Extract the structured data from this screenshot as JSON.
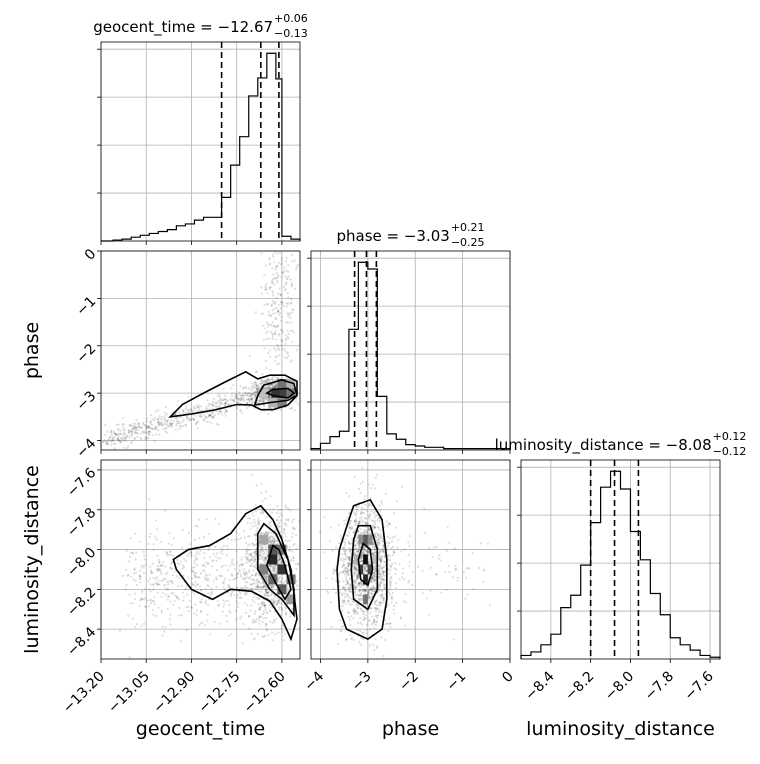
{
  "chart_data": {
    "type": "corner",
    "parameters": [
      "geocent_time",
      "phase",
      "luminosity_distance"
    ],
    "titles": [
      {
        "param": "geocent_time",
        "text": "geocent_time = −12.67",
        "upper": "+0.06",
        "lower": "−0.13",
        "median": -12.67,
        "quantiles": [
          -12.8,
          -12.67,
          -12.61
        ]
      },
      {
        "param": "phase",
        "text": "phase = −3.03",
        "upper": "+0.21",
        "lower": "−0.25",
        "median": -3.03,
        "quantiles": [
          -3.28,
          -3.03,
          -2.82
        ]
      },
      {
        "param": "luminosity_distance",
        "text": "luminosity_distance = −8.08",
        "upper": "+0.12",
        "lower": "−0.12",
        "median": -8.08,
        "quantiles": [
          -8.2,
          -8.08,
          -7.96
        ]
      }
    ],
    "axes": {
      "geocent_time": {
        "range": [
          -13.2,
          -12.54
        ],
        "ticks": [
          -13.2,
          -13.05,
          -12.9,
          -12.75,
          -12.6
        ],
        "ticklabels": [
          "−13.20",
          "−13.05",
          "−12.90",
          "−12.75",
          "−12.60"
        ]
      },
      "phase": {
        "range": [
          -4.2,
          0.0
        ],
        "ticks": [
          -4,
          -3,
          -2,
          -1,
          0
        ],
        "ticklabels": [
          "−4",
          "−3",
          "−2",
          "−1",
          "0"
        ]
      },
      "luminosity_distance": {
        "range": [
          -8.55,
          -7.55
        ],
        "ticks": [
          -8.4,
          -8.2,
          -8.0,
          -7.8,
          -7.6
        ],
        "ticklabels": [
          "−8.4",
          "−8.2",
          "−8.0",
          "−7.8",
          "−7.6"
        ]
      }
    },
    "hist_max_ticklabel": "0",
    "histograms": {
      "geocent_time": {
        "edges": [
          -13.2,
          -13.16,
          -13.13,
          -13.1,
          -13.07,
          -13.04,
          -13.01,
          -12.98,
          -12.95,
          -12.92,
          -12.89,
          -12.86,
          -12.83,
          -12.8,
          -12.77,
          -12.74,
          -12.71,
          -12.68,
          -12.65,
          -12.62,
          -12.6,
          -12.57,
          -12.54
        ],
        "counts": [
          0,
          1,
          2,
          4,
          6,
          8,
          10,
          12,
          16,
          18,
          22,
          25,
          25,
          46,
          80,
          110,
          153,
          172,
          198,
          171,
          5,
          2
        ]
      },
      "phase": {
        "edges": [
          -4.2,
          -4.0,
          -3.8,
          -3.6,
          -3.4,
          -3.2,
          -3.0,
          -2.8,
          -2.6,
          -2.4,
          -2.2,
          -2.0,
          -1.8,
          -1.6,
          -1.4,
          -1.2,
          -1.0,
          -0.8,
          -0.6,
          -0.4,
          -0.2,
          0.0
        ],
        "counts": [
          1,
          5,
          10,
          14,
          90,
          140,
          135,
          40,
          12,
          8,
          4,
          3,
          2,
          2,
          1,
          1,
          1,
          1,
          1,
          1,
          1
        ]
      },
      "luminosity_distance": {
        "edges": [
          -8.55,
          -8.5,
          -8.45,
          -8.4,
          -8.35,
          -8.3,
          -8.25,
          -8.2,
          -8.15,
          -8.1,
          -8.05,
          -8.0,
          -7.95,
          -7.9,
          -7.85,
          -7.8,
          -7.75,
          -7.7,
          -7.65,
          -7.6,
          -7.55
        ],
        "counts": [
          2,
          4,
          8,
          14,
          29,
          36,
          53,
          77,
          97,
          106,
          96,
          72,
          56,
          37,
          25,
          12,
          8,
          5,
          2,
          1
        ]
      }
    },
    "contours": {
      "phase_vs_geocent_time": [
        {
          "level": "outer",
          "x": [
            -12.97,
            -12.9,
            -12.82,
            -12.75,
            -12.7,
            -12.67,
            -12.63,
            -12.58,
            -12.55,
            -12.55,
            -12.59,
            -12.64,
            -12.68,
            -12.72,
            -12.79,
            -12.86,
            -12.93,
            -12.97
          ],
          "y": [
            -3.5,
            -3.44,
            -3.35,
            -3.24,
            -3.25,
            -3.35,
            -3.35,
            -3.25,
            -3.05,
            -2.75,
            -2.62,
            -2.62,
            -2.7,
            -2.55,
            -2.77,
            -3.0,
            -3.24,
            -3.5
          ]
        },
        {
          "level": "middle",
          "x": [
            -12.69,
            -12.64,
            -12.58,
            -12.55,
            -12.56,
            -12.6,
            -12.66,
            -12.68,
            -12.69
          ],
          "y": [
            -3.25,
            -3.2,
            -3.15,
            -3.05,
            -2.8,
            -2.72,
            -2.83,
            -3.05,
            -3.25
          ]
        },
        {
          "level": "inner",
          "x": [
            -12.63,
            -12.58,
            -12.56,
            -12.58,
            -12.63,
            -12.65,
            -12.63
          ],
          "y": [
            -3.05,
            -3.1,
            -3.0,
            -2.9,
            -2.92,
            -3.0,
            -3.05
          ]
        }
      ],
      "luminosity_distance_vs_geocent_time": [
        {
          "level": "outer",
          "x": [
            -12.95,
            -12.9,
            -12.83,
            -12.77,
            -12.7,
            -12.64,
            -12.6,
            -12.57,
            -12.55,
            -12.57,
            -12.6,
            -12.63,
            -12.67,
            -12.72,
            -12.77,
            -12.84,
            -12.91,
            -12.96,
            -12.95
          ],
          "y": [
            -8.1,
            -8.2,
            -8.25,
            -8.2,
            -8.21,
            -8.26,
            -8.35,
            -8.45,
            -8.35,
            -8.1,
            -7.95,
            -7.85,
            -7.78,
            -7.82,
            -7.92,
            -7.98,
            -8.0,
            -8.05,
            -8.1
          ]
        },
        {
          "level": "middle",
          "x": [
            -12.68,
            -12.64,
            -12.6,
            -12.56,
            -12.56,
            -12.58,
            -12.62,
            -12.66,
            -12.68,
            -12.68
          ],
          "y": [
            -8.1,
            -8.2,
            -8.25,
            -8.33,
            -8.2,
            -8.05,
            -7.92,
            -7.87,
            -7.92,
            -8.1
          ]
        },
        {
          "level": "inner",
          "x": [
            -12.65,
            -12.62,
            -12.59,
            -12.57,
            -12.59,
            -12.61,
            -12.63,
            -12.65
          ],
          "y": [
            -8.08,
            -8.17,
            -8.25,
            -8.2,
            -8.08,
            -8.0,
            -7.98,
            -8.08
          ]
        }
      ],
      "luminosity_distance_vs_phase": [
        {
          "level": "outer",
          "x": [
            -3.4,
            -3.6,
            -3.65,
            -3.6,
            -3.45,
            -3.0,
            -2.7,
            -2.6,
            -2.6,
            -2.7,
            -2.95,
            -3.3,
            -3.4
          ],
          "y": [
            -7.85,
            -8.0,
            -8.1,
            -8.3,
            -8.4,
            -8.45,
            -8.4,
            -8.25,
            -8.05,
            -7.85,
            -7.75,
            -7.78,
            -7.85
          ]
        },
        {
          "level": "middle",
          "x": [
            -3.3,
            -3.35,
            -3.3,
            -3.0,
            -2.8,
            -2.8,
            -2.95,
            -3.2,
            -3.3
          ],
          "y": [
            -7.95,
            -8.1,
            -8.25,
            -8.3,
            -8.2,
            -8.0,
            -7.88,
            -7.88,
            -7.95
          ]
        },
        {
          "level": "inner",
          "x": [
            -3.1,
            -3.2,
            -3.15,
            -3.0,
            -2.9,
            -2.95,
            -3.1
          ],
          "y": [
            -7.97,
            -8.05,
            -8.15,
            -8.18,
            -8.1,
            -8.0,
            -7.97
          ]
        }
      ]
    },
    "density_cells": {
      "phase_vs_geocent_time": [
        {
          "x": -12.62,
          "y": -3.0,
          "w": 0.2
        },
        {
          "x": -12.59,
          "y": -3.0,
          "w": 0.25
        },
        {
          "x": -12.6,
          "y": -3.2,
          "w": 0.5
        },
        {
          "x": -12.57,
          "y": -3.0,
          "w": 0.45
        },
        {
          "x": -12.6,
          "y": -2.8,
          "w": 0.45
        },
        {
          "x": -12.63,
          "y": -3.2,
          "w": 0.7
        },
        {
          "x": -12.57,
          "y": -2.8,
          "w": 0.7
        },
        {
          "x": -12.66,
          "y": -3.0,
          "w": 0.75
        }
      ],
      "luminosity_distance_vs_geocent_time": [
        {
          "x": -12.63,
          "y": -8.05,
          "w": 0.15
        },
        {
          "x": -12.6,
          "y": -8.1,
          "w": 0.2
        },
        {
          "x": -12.6,
          "y": -8.2,
          "w": 0.35
        },
        {
          "x": -12.63,
          "y": -8.0,
          "w": 0.35
        },
        {
          "x": -12.6,
          "y": -8.0,
          "w": 0.45
        },
        {
          "x": -12.57,
          "y": -8.15,
          "w": 0.45
        },
        {
          "x": -12.66,
          "y": -8.1,
          "w": 0.5
        },
        {
          "x": -12.63,
          "y": -8.15,
          "w": 0.4
        },
        {
          "x": -12.66,
          "y": -7.95,
          "w": 0.65
        },
        {
          "x": -12.57,
          "y": -8.25,
          "w": 0.6
        }
      ],
      "luminosity_distance_vs_phase": [
        {
          "x": -3.05,
          "y": -8.05,
          "w": 0.05
        },
        {
          "x": -3.05,
          "y": -8.15,
          "w": 0.15
        },
        {
          "x": -3.15,
          "y": -8.1,
          "w": 0.25
        },
        {
          "x": -2.95,
          "y": -8.1,
          "w": 0.3
        },
        {
          "x": -3.05,
          "y": -7.95,
          "w": 0.35
        },
        {
          "x": -3.15,
          "y": -7.95,
          "w": 0.55
        },
        {
          "x": -2.95,
          "y": -7.95,
          "w": 0.55
        },
        {
          "x": -3.05,
          "y": -8.25,
          "w": 0.45
        },
        {
          "x": -3.25,
          "y": -8.05,
          "w": 0.7
        },
        {
          "x": -2.85,
          "y": -8.05,
          "w": 0.75
        }
      ]
    },
    "colors": {
      "line": "#000000",
      "grid": "#b0b0b0",
      "scatter": "#000000"
    }
  }
}
